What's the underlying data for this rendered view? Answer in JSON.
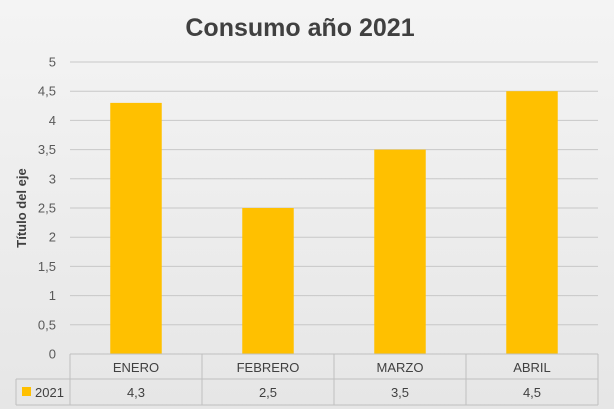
{
  "chart_data": {
    "type": "bar",
    "title": "Consumo año 2021",
    "ylabel": "Título del eje",
    "categories": [
      "ENERO",
      "FEBRERO",
      "MARZO",
      "ABRIL"
    ],
    "series": [
      {
        "name": "2021",
        "values": [
          4.3,
          2.5,
          3.5,
          4.5
        ],
        "value_labels": [
          "4,3",
          "2,5",
          "3,5",
          "4,5"
        ],
        "color": "#FFC000"
      }
    ],
    "ylim": [
      0,
      5
    ],
    "yticks": [
      "0",
      "0,5",
      "1",
      "1,5",
      "2",
      "2,5",
      "3",
      "3,5",
      "4",
      "4,5",
      "5"
    ],
    "grid": true,
    "legend": "data-table"
  }
}
